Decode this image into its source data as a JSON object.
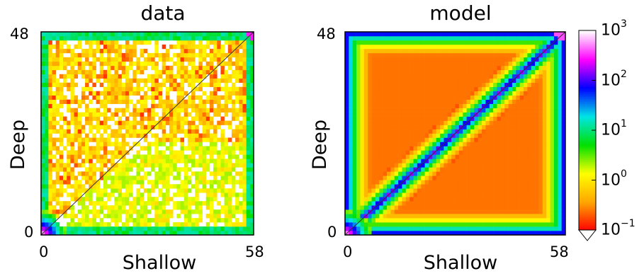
{
  "chart_data": [
    {
      "type": "heatmap",
      "title": "data",
      "xlabel": "Shallow",
      "ylabel": "Deep",
      "xlim": [
        0,
        58
      ],
      "ylim": [
        0,
        48
      ],
      "x_ticks": [
        "0",
        "58"
      ],
      "y_ticks": [
        "0",
        "48"
      ],
      "diagonal_line": true,
      "color_scale": "log",
      "description_values": {
        "corner_origin_count": 1000,
        "corner_top_right_count": 300,
        "bottom_left_triangle_typical": 1,
        "upper_region_typical": 0.3,
        "lower_right_region_typical": 0.3
      }
    },
    {
      "type": "heatmap",
      "title": "model",
      "xlabel": "Shallow",
      "ylabel": "Deep",
      "xlim": [
        0,
        58
      ],
      "ylim": [
        0,
        48
      ],
      "x_ticks": [
        "0",
        "58"
      ],
      "y_ticks": [
        "0",
        "48"
      ],
      "diagonal_line": true,
      "color_scale": "log"
    }
  ],
  "colorbar": {
    "scale": "log",
    "range": [
      0.1,
      1000
    ],
    "ticks": [
      {
        "base": "10",
        "exp": "3",
        "value": 1000
      },
      {
        "base": "10",
        "exp": "2",
        "value": 100
      },
      {
        "base": "10",
        "exp": "1",
        "value": 10
      },
      {
        "base": "10",
        "exp": "0",
        "value": 1
      },
      {
        "base": "10",
        "exp": "−1",
        "value": 0.1
      }
    ],
    "extend_min": true,
    "colormap": [
      "#ff0000",
      "#ffa500",
      "#ffff00",
      "#00e000",
      "#00e5e5",
      "#0000ff",
      "#ff00ff",
      "#ffffff"
    ]
  },
  "panels": {
    "left": {
      "title": "data",
      "xlabel": "Shallow",
      "ylabel": "Deep",
      "x0": "0",
      "x1": "58",
      "y0": "0",
      "y1": "48"
    },
    "right": {
      "title": "model",
      "xlabel": "Shallow",
      "ylabel": "Deep",
      "x0": "0",
      "x1": "58",
      "y0": "0",
      "y1": "48"
    }
  }
}
